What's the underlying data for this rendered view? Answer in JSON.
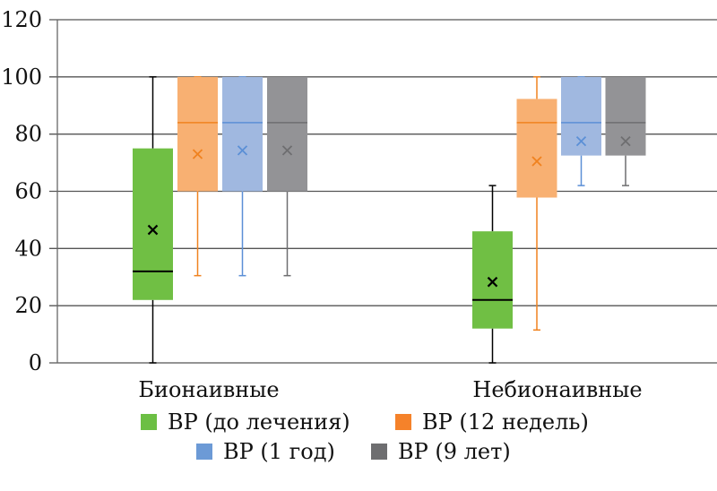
{
  "chart_data": {
    "type": "boxplot",
    "title": "",
    "xlabel": "",
    "ylabel": "",
    "ylim": [
      0,
      120
    ],
    "yticks": [
      "0",
      "20",
      "40",
      "60",
      "80",
      "100",
      "120"
    ],
    "grid": true,
    "legend_placement": "bottom",
    "categories": [
      "Бионаивные",
      "Небионаивные"
    ],
    "series": [
      {
        "name": "BP (до лечения)",
        "color": "#6CBF44",
        "fill": "#70BF44",
        "line": "#000000",
        "boxes": [
          {
            "min": 0,
            "q1": 22,
            "median": 32,
            "q3": 75,
            "max": 100,
            "mean": 46.5
          },
          {
            "min": 0,
            "q1": 12,
            "median": 22,
            "q3": 46,
            "max": 62,
            "mean": 28.3
          }
        ]
      },
      {
        "name": "BP (12 недель)",
        "color": "#F5822A",
        "fill": "#F8B072",
        "line": "#F0821F",
        "boxes": [
          {
            "min": 30.5,
            "q1": 60,
            "median": 84,
            "q3": 100,
            "max": 100,
            "mean": 73
          },
          {
            "min": 11.5,
            "q1": 57.8,
            "median": 84,
            "q3": 92.3,
            "max": 100,
            "mean": 70.5
          }
        ]
      },
      {
        "name": "BP (1 год)",
        "color": "#6C9AD6",
        "fill": "#A0B8E0",
        "line": "#5B8FD6",
        "boxes": [
          {
            "min": 30.5,
            "q1": 60,
            "median": 84,
            "q3": 100,
            "max": 100,
            "mean": 74.3
          },
          {
            "min": 62,
            "q1": 72.5,
            "median": 84,
            "q3": 100,
            "max": 100,
            "mean": 77.5
          }
        ]
      },
      {
        "name": "BP (9 лет)",
        "color": "#6E6E70",
        "fill": "#939396",
        "line": "#6E6E70",
        "boxes": [
          {
            "min": 30.5,
            "q1": 60,
            "median": 84,
            "q3": 100,
            "max": 100,
            "mean": 74.3
          },
          {
            "min": 62,
            "q1": 72.5,
            "median": 84,
            "q3": 100,
            "max": 100,
            "mean": 77.5
          }
        ]
      }
    ]
  }
}
